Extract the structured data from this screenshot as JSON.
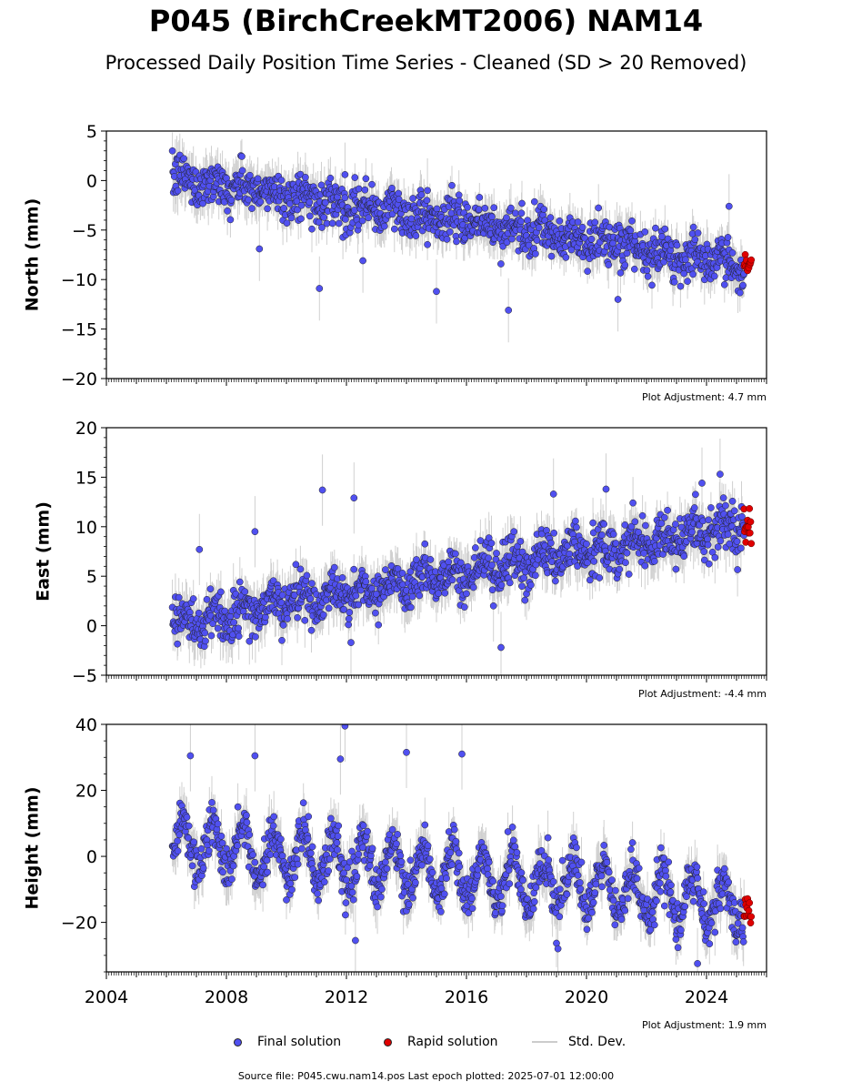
{
  "title": "P045 (BirchCreekMT2006) NAM14",
  "subtitle": "Processed Daily Position Time Series - Cleaned (SD > 20 Removed)",
  "legend": {
    "final": "Final solution",
    "rapid": "Rapid solution",
    "std": "Std. Dev."
  },
  "footer": "Source file: P045.cwu.nam14.pos  Last epoch plotted: 2025-07-01 12:00:00",
  "colors": {
    "final": "#5050f0",
    "rapid": "#e00000",
    "std": "#bbbbbb",
    "edge": "#222222"
  },
  "chart_data": [
    {
      "type": "scatter",
      "component": "north",
      "ylabel": "North (mm)",
      "ylim": [
        -20,
        5
      ],
      "yticks": [
        5,
        0,
        -5,
        -10,
        -15,
        -20
      ],
      "ytick_labels": [
        "5",
        "0",
        "−5",
        "−10",
        "−15",
        "−20"
      ],
      "xlim": [
        2004,
        2026
      ],
      "x_tick_labels_shown": false,
      "adjustment": "Plot Adjustment: 4.7 mm",
      "trend": {
        "start_year": 2006.2,
        "start_value": 0.3,
        "end_year": 2025.5,
        "end_value": -8.7
      },
      "seasonal_amplitude": 0.6,
      "scatter_sd": 1.1,
      "std_dev_mm": 1.8,
      "rapid": {
        "start_year": 2025.25,
        "end_year": 2025.5,
        "center_value": -8.6
      },
      "series": [
        {
          "name": "Final solution",
          "x_range": [
            2006.2,
            2025.25
          ]
        },
        {
          "name": "Rapid solution",
          "x_range": [
            2025.25,
            2025.5
          ]
        }
      ],
      "outliers": [
        [
          2011.1,
          -10.9
        ],
        [
          2011.95,
          0.6
        ],
        [
          2012.55,
          -8.1
        ],
        [
          2015.0,
          -11.2
        ],
        [
          2017.4,
          -13.1
        ],
        [
          2024.75,
          -2.6
        ],
        [
          2021.05,
          -12.0
        ],
        [
          2009.1,
          -6.9
        ],
        [
          2014.7,
          -1.0
        ]
      ]
    },
    {
      "type": "scatter",
      "component": "east",
      "ylabel": "East (mm)",
      "ylim": [
        -5,
        20
      ],
      "yticks": [
        20,
        15,
        10,
        5,
        0,
        -5
      ],
      "ytick_labels": [
        "20",
        "15",
        "10",
        "5",
        "0",
        "−5"
      ],
      "xlim": [
        2004,
        2026
      ],
      "x_tick_labels_shown": false,
      "adjustment": "Plot Adjustment: -4.4 mm",
      "trend": {
        "start_year": 2006.2,
        "start_value": 0.2,
        "end_year": 2025.5,
        "end_value": 10.4
      },
      "seasonal_amplitude": 0.9,
      "scatter_sd": 1.2,
      "std_dev_mm": 2.0,
      "rapid": {
        "start_year": 2025.25,
        "end_year": 2025.5,
        "center_value": 10.0
      },
      "series": [
        {
          "name": "Final solution",
          "x_range": [
            2006.2,
            2025.25
          ]
        },
        {
          "name": "Rapid solution",
          "x_range": [
            2025.25,
            2025.5
          ]
        }
      ],
      "outliers": [
        [
          2011.2,
          13.7
        ],
        [
          2012.25,
          12.9
        ],
        [
          2008.95,
          9.5
        ],
        [
          2017.15,
          -2.2
        ],
        [
          2016.9,
          2.0
        ],
        [
          2018.9,
          13.3
        ],
        [
          2020.65,
          13.8
        ],
        [
          2023.85,
          14.4
        ],
        [
          2024.45,
          15.3
        ],
        [
          2012.15,
          -1.7
        ],
        [
          2007.1,
          7.7
        ]
      ]
    },
    {
      "type": "scatter",
      "component": "height",
      "ylabel": "Height (mm)",
      "ylim": [
        -35,
        40
      ],
      "yticks": [
        40,
        20,
        0,
        -20
      ],
      "ytick_labels": [
        "40",
        "20",
        "0",
        "−20"
      ],
      "xlim": [
        2004,
        2026
      ],
      "xticks": [
        2004,
        2008,
        2012,
        2016,
        2020,
        2024
      ],
      "xtick_labels": [
        "2004",
        "2008",
        "2012",
        "2016",
        "2020",
        "2024"
      ],
      "x_tick_labels_shown": true,
      "adjustment": "Plot Adjustment: 1.9 mm",
      "trend": {
        "start_year": 2006.2,
        "start_value": 4.0,
        "end_year": 2025.5,
        "end_value": -15.0
      },
      "seasonal_amplitude": 7.5,
      "scatter_sd": 3.3,
      "std_dev_mm": 6.0,
      "rapid": {
        "start_year": 2025.25,
        "end_year": 2025.5,
        "center_value": -17.0
      },
      "series": [
        {
          "name": "Final solution",
          "x_range": [
            2006.2,
            2025.25
          ]
        },
        {
          "name": "Rapid solution",
          "x_range": [
            2025.25,
            2025.5
          ]
        }
      ],
      "outliers": [
        [
          2011.95,
          39.5
        ],
        [
          2012.3,
          -25.5
        ],
        [
          2014.0,
          31.5
        ],
        [
          2015.85,
          31.0
        ],
        [
          2023.7,
          -32.5
        ],
        [
          2006.8,
          30.5
        ],
        [
          2008.95,
          30.5
        ],
        [
          2011.8,
          29.5
        ],
        [
          2019.05,
          -28.0
        ]
      ]
    }
  ]
}
